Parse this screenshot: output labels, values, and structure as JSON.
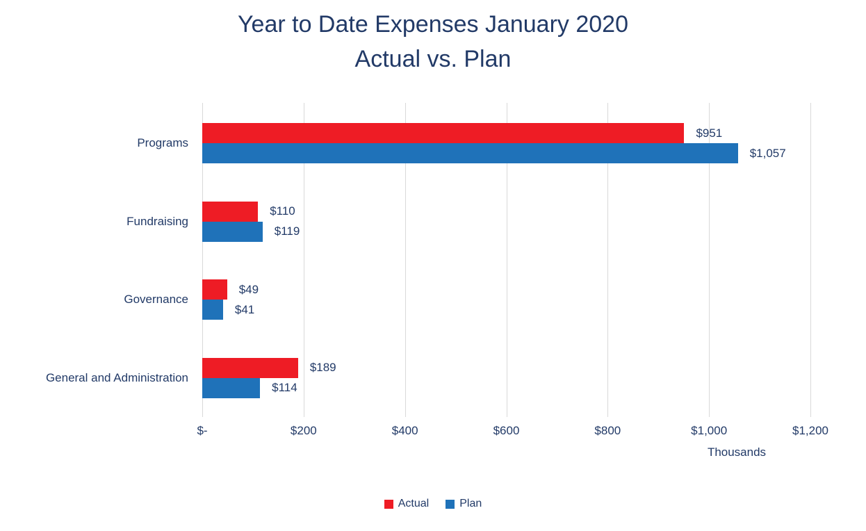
{
  "title": {
    "line1": "Year to Date Expenses January 2020",
    "line2": "Actual vs. Plan"
  },
  "colors": {
    "text": "#223a67",
    "gridline": "#d9d9d9",
    "actual_red": "#ee1c25",
    "plan_blue": "#1f72b9"
  },
  "chart_data": {
    "type": "bar",
    "orientation": "horizontal",
    "title": "Year to Date Expenses January 2020 Actual vs. Plan",
    "categories": [
      "Programs",
      "Fundraising",
      "Governance",
      "General and Administration"
    ],
    "series": [
      {
        "name": "Actual",
        "color": "#ee1c25",
        "values": [
          951,
          110,
          49,
          189
        ],
        "labels": [
          "$951",
          "$110",
          "$49",
          "$189"
        ]
      },
      {
        "name": "Plan",
        "color": "#1f72b9",
        "values": [
          1057,
          119,
          41,
          114
        ],
        "labels": [
          "$1,057",
          "$119",
          "$41",
          "$114"
        ]
      }
    ],
    "xlabel": "Thousands",
    "xlim": [
      0,
      1200
    ],
    "x_ticks": [
      0,
      200,
      400,
      600,
      800,
      1000,
      1200
    ],
    "x_tick_labels": [
      "$-",
      "$200",
      "$400",
      "$600",
      "$800",
      "$1,000",
      "$1,200"
    ],
    "grid": "vertical",
    "legend_position": "bottom"
  }
}
